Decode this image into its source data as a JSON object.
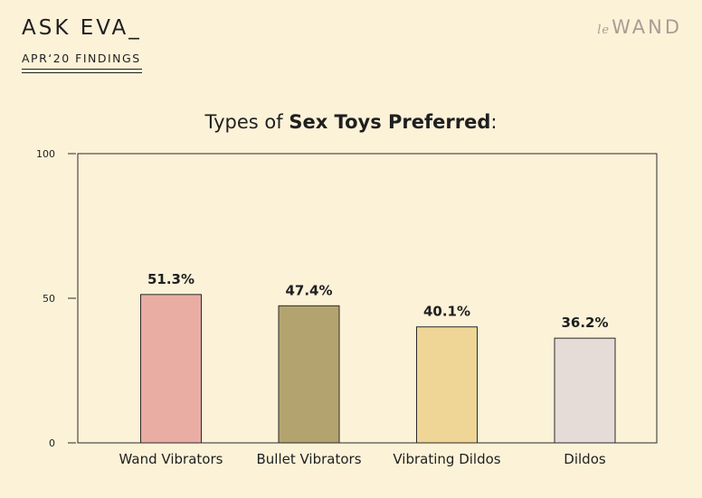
{
  "header": {
    "title": "ASK EVA_",
    "subtitle": "APR‘20 FINDINGS",
    "logo_prefix": "le",
    "logo_main": "WAND"
  },
  "chart": {
    "title_prefix": "Types of ",
    "title_bold": "Sex Toys Preferred",
    "title_suffix": ":"
  },
  "chart_data": {
    "type": "bar",
    "title": "Types of Sex Toys Preferred:",
    "categories": [
      "Wand Vibrators",
      "Bullet Vibrators",
      "Vibrating Dildos",
      "Dildos"
    ],
    "values": [
      51.3,
      47.4,
      40.1,
      36.2
    ],
    "labels": [
      "51.3%",
      "47.4%",
      "40.1%",
      "36.2%"
    ],
    "colors": [
      "#e9ada3",
      "#b3a46f",
      "#efd696",
      "#e5dcd8"
    ],
    "ylim": [
      0,
      100
    ],
    "yticks": [
      0,
      50,
      100
    ],
    "xlabel": "",
    "ylabel": "",
    "grid": false,
    "legend": "none"
  }
}
